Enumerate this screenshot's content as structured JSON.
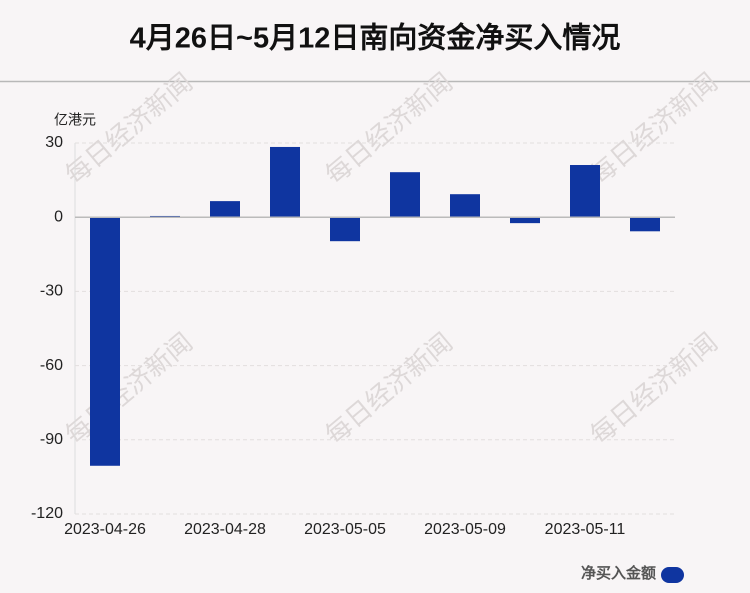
{
  "chart_data": {
    "type": "bar",
    "title": "4月26日~5月12日南向资金净买入情况",
    "y_unit": "亿港元",
    "watermark": "每日经济新闻",
    "categories": [
      "2023-04-26",
      null,
      "2023-04-28",
      null,
      "2023-05-05",
      null,
      "2023-05-09",
      null,
      "2023-05-11",
      null
    ],
    "series": [
      {
        "name": "净买入金额",
        "color": "#0f35a0",
        "values": [
          -100.5,
          0.5,
          6.5,
          28.4,
          -9.7,
          18.2,
          9.3,
          -2.4,
          21.1,
          -5.7
        ]
      }
    ],
    "ylim": [
      -120,
      30
    ],
    "yticks": [
      -120,
      -90,
      -60,
      -30,
      0,
      30
    ],
    "grid": true,
    "legend": "bottom-right"
  }
}
